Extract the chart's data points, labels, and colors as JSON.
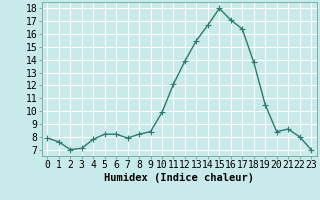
{
  "x": [
    0,
    1,
    2,
    3,
    4,
    5,
    6,
    7,
    8,
    9,
    10,
    11,
    12,
    13,
    14,
    15,
    16,
    17,
    18,
    19,
    20,
    21,
    22,
    23
  ],
  "y": [
    7.9,
    7.6,
    7.0,
    7.1,
    7.8,
    8.2,
    8.2,
    7.9,
    8.2,
    8.4,
    9.9,
    12.1,
    13.9,
    15.5,
    16.7,
    18.0,
    17.1,
    16.4,
    13.8,
    10.5,
    8.4,
    8.6,
    8.0,
    7.0
  ],
  "line_color": "#2d7a6e",
  "marker": "+",
  "marker_color": "#2d7a6e",
  "bg_color": "#c8eaea",
  "grid_color": "#ffffff",
  "xlabel": "Humidex (Indice chaleur)",
  "ylabel_ticks": [
    7,
    8,
    9,
    10,
    11,
    12,
    13,
    14,
    15,
    16,
    17,
    18
  ],
  "ylim": [
    6.5,
    18.5
  ],
  "xlim": [
    -0.5,
    23.5
  ],
  "xlabel_fontsize": 7.5,
  "tick_fontsize": 7,
  "line_width": 1.0,
  "marker_size": 4
}
